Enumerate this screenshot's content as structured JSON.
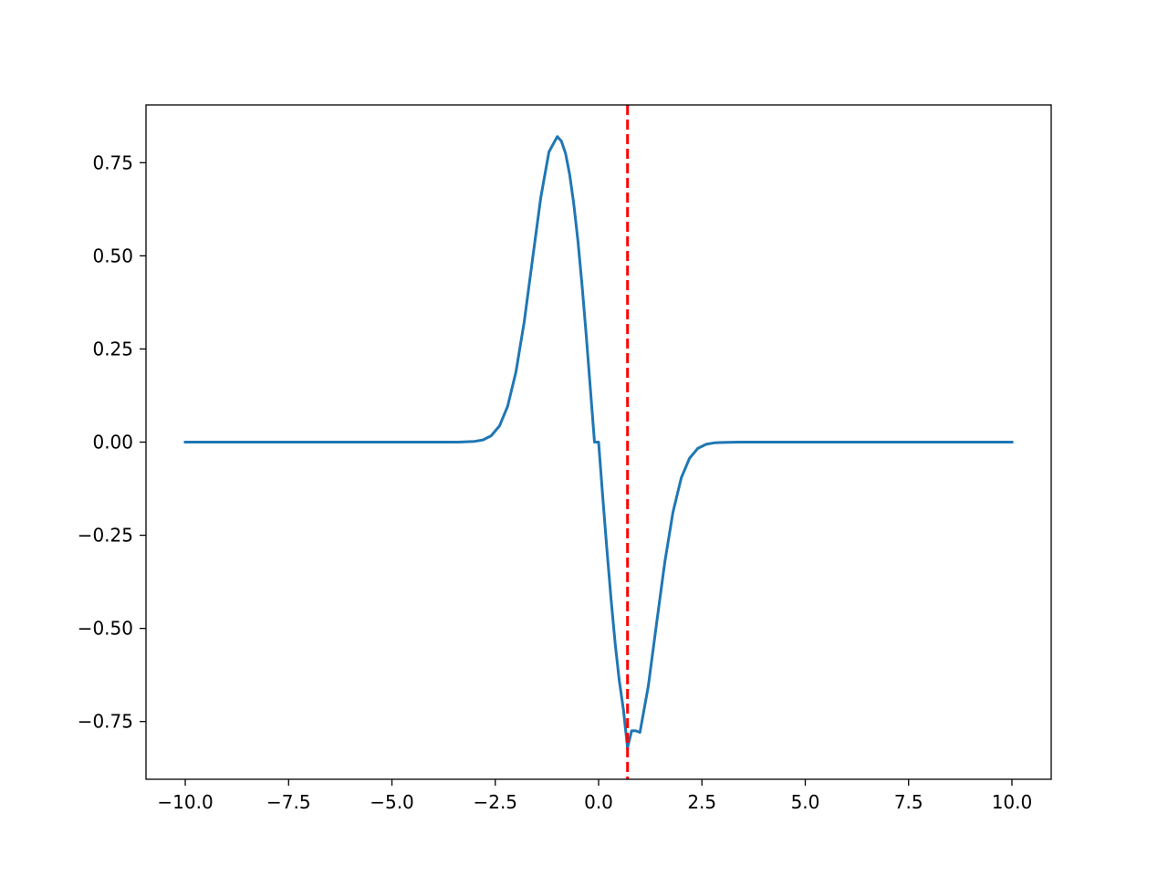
{
  "chart_data": {
    "type": "line",
    "title": "",
    "xlabel": "",
    "ylabel": "",
    "xlim": [
      -10.95,
      10.95
    ],
    "ylim": [
      -0.905,
      0.905
    ],
    "grid": false,
    "x_ticks": [
      {
        "value": -10.0,
        "label": "−10.0"
      },
      {
        "value": -7.5,
        "label": "−7.5"
      },
      {
        "value": -5.0,
        "label": "−5.0"
      },
      {
        "value": -2.5,
        "label": "−2.5"
      },
      {
        "value": 0.0,
        "label": "0.0"
      },
      {
        "value": 2.5,
        "label": "2.5"
      },
      {
        "value": 5.0,
        "label": "5.0"
      },
      {
        "value": 7.5,
        "label": "7.5"
      },
      {
        "value": 10.0,
        "label": "10.0"
      }
    ],
    "y_ticks": [
      {
        "value": 0.75,
        "label": "0.75"
      },
      {
        "value": 0.5,
        "label": "0.50"
      },
      {
        "value": 0.25,
        "label": "0.25"
      },
      {
        "value": 0.0,
        "label": "0.00"
      },
      {
        "value": -0.25,
        "label": "−0.25"
      },
      {
        "value": -0.5,
        "label": "−0.50"
      },
      {
        "value": -0.75,
        "label": "−0.75"
      }
    ],
    "series": [
      {
        "color": "#1f77b4",
        "x": [
          -10.0,
          -3.4,
          -3.0,
          -2.8,
          -2.6,
          -2.4,
          -2.2,
          -2.0,
          -1.8,
          -1.6,
          -1.4,
          -1.2,
          -1.0,
          -0.9,
          -0.8,
          -0.7,
          -0.6,
          -0.5,
          -0.4,
          -0.3,
          -0.2,
          -0.1,
          0.0,
          0.1,
          0.2,
          0.3,
          0.4,
          0.5,
          0.6,
          0.7,
          0.8,
          0.9,
          1.0,
          1.2,
          1.4,
          1.6,
          1.8,
          2.0,
          2.2,
          2.4,
          2.6,
          2.8,
          3.0,
          3.4,
          10.0
        ],
        "y": [
          0.0,
          0.0,
          0.002,
          0.006,
          0.017,
          0.043,
          0.096,
          0.188,
          0.323,
          0.489,
          0.656,
          0.779,
          0.82,
          0.808,
          0.775,
          0.718,
          0.639,
          0.539,
          0.42,
          0.288,
          0.146,
          0.0,
          0.0,
          -0.146,
          -0.288,
          -0.42,
          -0.539,
          -0.639,
          -0.718,
          -0.82,
          -0.775,
          -0.775,
          -0.779,
          -0.656,
          -0.489,
          -0.323,
          -0.188,
          -0.096,
          -0.043,
          -0.017,
          -0.006,
          -0.002,
          -0.001,
          0.0,
          0.0
        ]
      }
    ],
    "vline": {
      "x": 0.7,
      "color": "#ff0000",
      "style": "dashed"
    }
  }
}
